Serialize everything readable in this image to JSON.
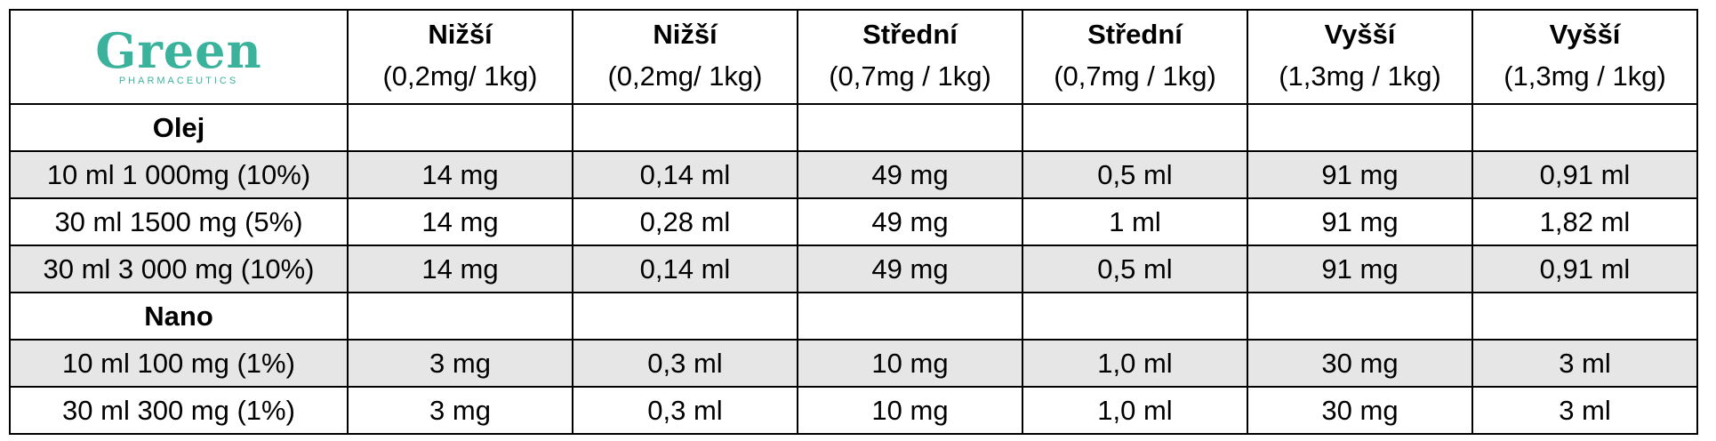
{
  "logo": {
    "word": "Green",
    "tagline": "PHARMACEUTICS"
  },
  "headers": [
    {
      "title": "Nižší",
      "sub": "(0,2mg/ 1kg)"
    },
    {
      "title": "Nižší",
      "sub": "(0,2mg/ 1kg)"
    },
    {
      "title": "Střední",
      "sub": "(0,7mg / 1kg)"
    },
    {
      "title": "Střední",
      "sub": "(0,7mg / 1kg)"
    },
    {
      "title": "Vyšší",
      "sub": "(1,3mg / 1kg)"
    },
    {
      "title": "Vyšší",
      "sub": "(1,3mg / 1kg)"
    }
  ],
  "sections": [
    {
      "name": "Olej",
      "rows": [
        {
          "product": "10 ml 1 000mg  (10%)",
          "cells": [
            "14 mg",
            "0,14 ml",
            "49 mg",
            "0,5 ml",
            "91 mg",
            "0,91 ml"
          ]
        },
        {
          "product": "30 ml 1500 mg (5%)",
          "cells": [
            "14 mg",
            "0,28 ml",
            "49 mg",
            "1 ml",
            "91 mg",
            "1,82 ml"
          ]
        },
        {
          "product": "30 ml 3 000 mg (10%)",
          "cells": [
            "14 mg",
            "0,14 ml",
            "49 mg",
            "0,5 ml",
            "91 mg",
            "0,91 ml"
          ]
        }
      ]
    },
    {
      "name": "Nano",
      "rows": [
        {
          "product": "10 ml 100 mg (1%)",
          "cells": [
            "3 mg",
            "0,3 ml",
            "10 mg",
            "1,0 ml",
            "30 mg",
            "3 ml"
          ]
        },
        {
          "product": "30 ml 300 mg (1%)",
          "cells": [
            "3 mg",
            "0,3 ml",
            "10 mg",
            "1,0 ml",
            "30 mg",
            "3 ml"
          ]
        }
      ]
    }
  ]
}
